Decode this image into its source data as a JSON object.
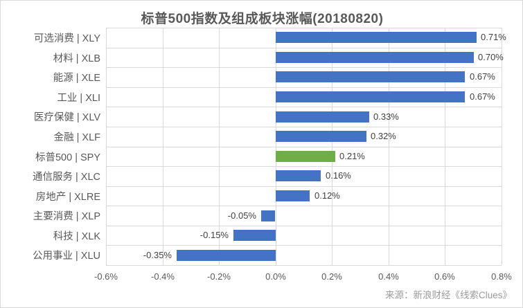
{
  "header": {
    "title": "标普500指数及组成板块涨幅(20180820)"
  },
  "footer": {
    "source": "来源：新浪财经《线索Clues》"
  },
  "colors": {
    "bar_default": "#4472c4",
    "bar_highlight": "#70ad47",
    "gridline": "#d9d9d9",
    "axis_text": "#595959",
    "data_label_text": "#404040",
    "source_text": "#9b9b9b"
  },
  "chart_data": {
    "type": "bar",
    "orientation": "horizontal",
    "title": "标普500指数及组成板块涨幅(20180820)",
    "categories": [
      "可选消费 | XLY",
      "材料 | XLB",
      "能源 | XLE",
      "工业 | XLI",
      "医疗保健 | XLV",
      "金融 | XLF",
      "标普500 | SPY",
      "通信服务 | XLC",
      "房地产 | XLRE",
      "主要消费 | XLP",
      "科技 | XLK",
      "公用事业 | XLU"
    ],
    "values": [
      0.71,
      0.7,
      0.67,
      0.67,
      0.33,
      0.32,
      0.21,
      0.16,
      0.12,
      -0.05,
      -0.15,
      -0.35
    ],
    "labels": [
      "0.71%",
      "0.70%",
      "0.67%",
      "0.67%",
      "0.33%",
      "0.32%",
      "0.21%",
      "0.16%",
      "0.12%",
      "-0.05%",
      "-0.15%",
      "-0.35%"
    ],
    "highlight_index": 6,
    "xlabel": "",
    "ylabel": "",
    "xlim": [
      -0.6,
      0.8
    ],
    "x_ticks": [
      "-0.6%",
      "-0.4%",
      "-0.2%",
      "0.0%",
      "0.2%",
      "0.4%",
      "0.6%",
      "0.8%"
    ],
    "x_tick_values": [
      -0.6,
      -0.4,
      -0.2,
      0.0,
      0.2,
      0.4,
      0.6,
      0.8
    ],
    "grid": true,
    "legend": false
  }
}
